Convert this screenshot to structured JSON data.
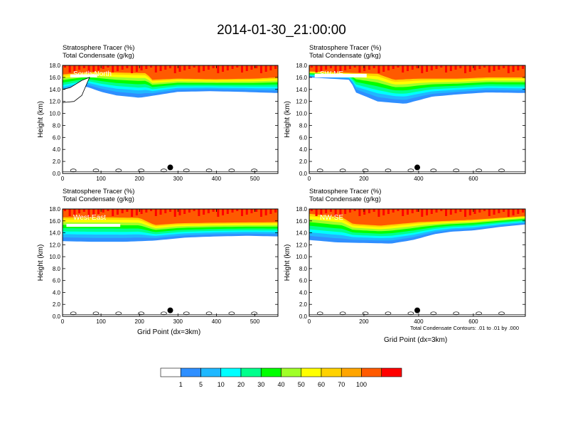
{
  "title": "2014-01-30_21:00:00",
  "panel_title_line1": "Stratosphere Tracer   (%)",
  "panel_title_line2": "Total Condensate   (g/kg)",
  "ylabel": "Height (km)",
  "xlabel": "Grid Point (dx=3km)",
  "contour_note": "Total Condensate Contours: .01 to .01 by .000",
  "colorbar": {
    "colors": [
      "#ffffff",
      "#2f8fff",
      "#1fb8ff",
      "#00ffff",
      "#00ff8c",
      "#00ff00",
      "#a0ff28",
      "#ffff00",
      "#ffd200",
      "#ffa500",
      "#ff5a00",
      "#ff0000"
    ],
    "labels": [
      "1",
      "5",
      "10",
      "20",
      "30",
      "40",
      "50",
      "60",
      "70",
      "100"
    ]
  },
  "chart_data": [
    {
      "type": "heatmap",
      "label": "South-North",
      "xlim": [
        0,
        560
      ],
      "xticks": [
        "0",
        "100",
        "200",
        "300",
        "400",
        "500"
      ],
      "xtick_values": [
        0,
        100,
        200,
        300,
        400,
        500
      ],
      "ylim": [
        0,
        18
      ],
      "yticks": [
        "0.0",
        "2.0",
        "4.0",
        "6.0",
        "8.0",
        "10.0",
        "12.0",
        "14.0",
        "16.0",
        "18.0"
      ],
      "dot": {
        "x": 280,
        "y": 1.0
      },
      "tracer_bottom_km": [
        [
          0,
          13.5
        ],
        [
          60,
          14.5
        ],
        [
          100,
          13.6
        ],
        [
          140,
          13.0
        ],
        [
          200,
          12.6
        ],
        [
          260,
          13.2
        ],
        [
          300,
          13.6
        ],
        [
          380,
          13.7
        ],
        [
          460,
          13.6
        ],
        [
          560,
          13.4
        ]
      ],
      "red_bottom_km": [
        [
          0,
          16.5
        ],
        [
          80,
          16.9
        ],
        [
          150,
          16.8
        ],
        [
          220,
          16.7
        ],
        [
          230,
          15.6
        ],
        [
          300,
          15.8
        ],
        [
          400,
          15.7
        ],
        [
          500,
          15.8
        ],
        [
          560,
          16.0
        ]
      ],
      "white_band": {
        "x0": 20,
        "x1": 90,
        "y0": 16.0,
        "y1": 16.5
      },
      "condensate_blob": [
        [
          0,
          14.0
        ],
        [
          20,
          14.3
        ],
        [
          50,
          15.5
        ],
        [
          70,
          16.0
        ],
        [
          50,
          13.0
        ],
        [
          30,
          12.0
        ],
        [
          0,
          11.8
        ]
      ]
    },
    {
      "type": "heatmap",
      "label": "SW-NE",
      "xlim": [
        0,
        790
      ],
      "xticks": [
        "0",
        "200",
        "400",
        "600"
      ],
      "xtick_values": [
        0,
        200,
        400,
        600
      ],
      "ylim": [
        0,
        18
      ],
      "yticks": [
        "0.0",
        "2.0",
        "4.0",
        "6.0",
        "8.0",
        "10.0",
        "12.0",
        "14.0",
        "16.0",
        "18.0"
      ],
      "dot": {
        "x": 395,
        "y": 1.0
      },
      "tracer_bottom_km": [
        [
          0,
          16.0
        ],
        [
          150,
          15.6
        ],
        [
          170,
          13.5
        ],
        [
          250,
          12.0
        ],
        [
          350,
          11.6
        ],
        [
          450,
          12.8
        ],
        [
          550,
          13.2
        ],
        [
          650,
          13.5
        ],
        [
          790,
          13.4
        ]
      ],
      "red_bottom_km": [
        [
          0,
          17.0
        ],
        [
          250,
          16.6
        ],
        [
          310,
          15.6
        ],
        [
          400,
          15.8
        ],
        [
          550,
          15.8
        ],
        [
          650,
          16.0
        ],
        [
          790,
          16.0
        ]
      ],
      "white_band": {
        "x0": 20,
        "x1": 210,
        "y0": 16.0,
        "y1": 16.6
      }
    },
    {
      "type": "heatmap",
      "label": "West-East",
      "xlim": [
        0,
        560
      ],
      "xticks": [
        "0",
        "100",
        "200",
        "300",
        "400",
        "500"
      ],
      "xtick_values": [
        0,
        100,
        200,
        300,
        400,
        500
      ],
      "ylim": [
        0,
        18
      ],
      "yticks": [
        "0.0",
        "2.0",
        "4.0",
        "6.0",
        "8.0",
        "10.0",
        "12.0",
        "14.0",
        "16.0",
        "18.0"
      ],
      "dot": {
        "x": 280,
        "y": 1.0
      },
      "tracer_bottom_km": [
        [
          0,
          12.6
        ],
        [
          80,
          12.5
        ],
        [
          160,
          12.5
        ],
        [
          240,
          12.7
        ],
        [
          320,
          13.2
        ],
        [
          400,
          13.4
        ],
        [
          480,
          13.5
        ],
        [
          560,
          13.4
        ]
      ],
      "red_bottom_km": [
        [
          0,
          16.6
        ],
        [
          120,
          16.6
        ],
        [
          200,
          16.5
        ],
        [
          240,
          15.3
        ],
        [
          300,
          15.6
        ],
        [
          400,
          15.7
        ],
        [
          560,
          15.8
        ]
      ],
      "white_band": {
        "x0": 10,
        "x1": 150,
        "y0": 15.0,
        "y1": 15.5
      }
    },
    {
      "type": "heatmap",
      "label": "NW-SE",
      "xlim": [
        0,
        790
      ],
      "xticks": [
        "0",
        "200",
        "400",
        "600"
      ],
      "xtick_values": [
        0,
        200,
        400,
        600
      ],
      "ylim": [
        0,
        18
      ],
      "yticks": [
        "0.0",
        "2.0",
        "4.0",
        "6.0",
        "8.0",
        "10.0",
        "12.0",
        "14.0",
        "16.0",
        "18.0"
      ],
      "dot": {
        "x": 395,
        "y": 1.0
      },
      "tracer_bottom_km": [
        [
          0,
          12.8
        ],
        [
          100,
          12.4
        ],
        [
          200,
          12.3
        ],
        [
          300,
          12.2
        ],
        [
          380,
          12.8
        ],
        [
          460,
          13.8
        ],
        [
          520,
          14.2
        ],
        [
          600,
          14.4
        ],
        [
          700,
          15.0
        ],
        [
          790,
          15.4
        ]
      ],
      "red_bottom_km": [
        [
          0,
          17.2
        ],
        [
          120,
          16.6
        ],
        [
          160,
          15.5
        ],
        [
          260,
          15.2
        ],
        [
          400,
          15.8
        ],
        [
          500,
          16.0
        ],
        [
          600,
          16.2
        ],
        [
          790,
          16.8
        ]
      ],
      "white_band": {
        "x0": 0,
        "x1": 0,
        "y0": 0,
        "y1": 0
      }
    }
  ]
}
